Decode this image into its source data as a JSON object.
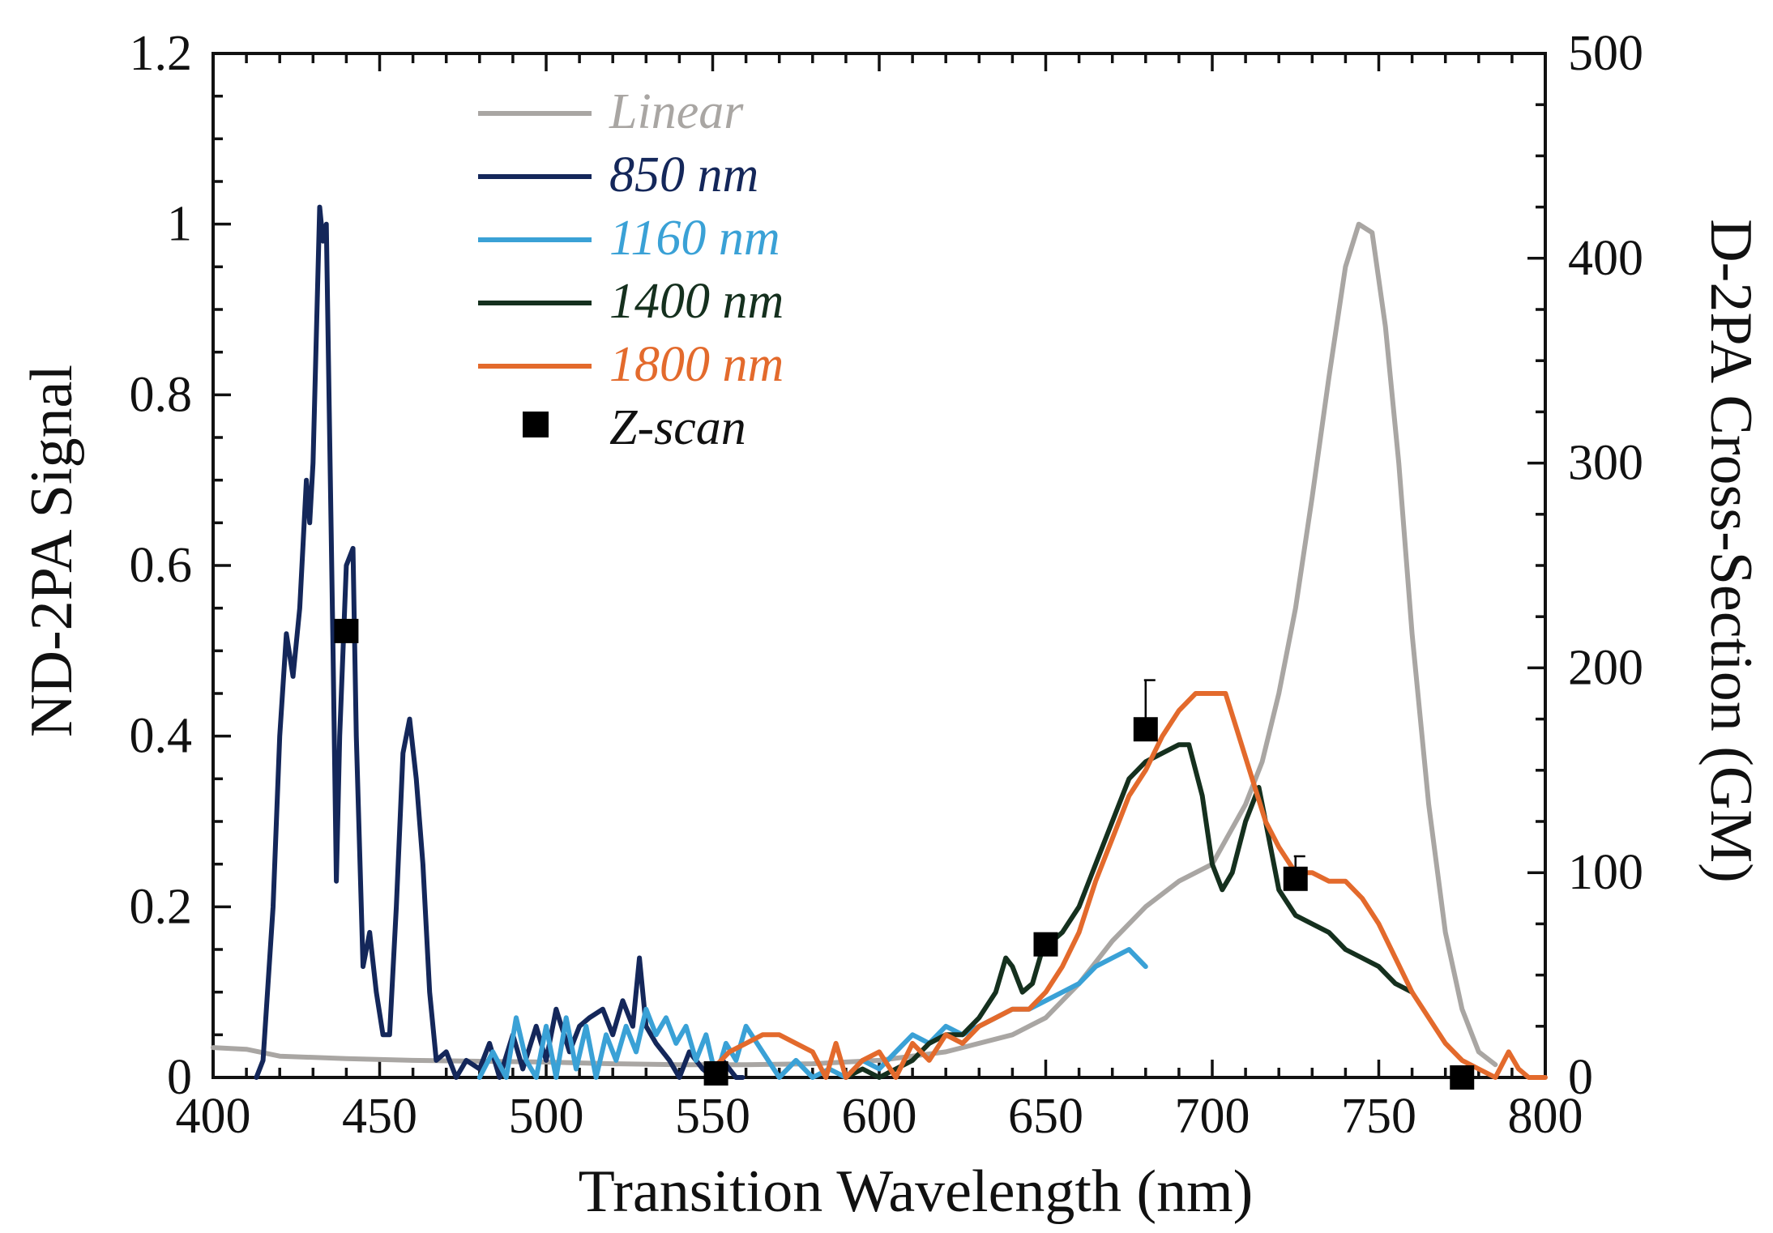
{
  "chart_data": {
    "type": "line",
    "xlabel": "Transition Wavelength (nm)",
    "ylabel_left": "ND-2PA Signal",
    "ylabel_right": "D-2PA Cross-Section (GM)",
    "xlim": [
      400,
      800
    ],
    "ylim_left": [
      0,
      1.2
    ],
    "ylim_right": [
      0,
      500
    ],
    "x_ticks": [
      400,
      450,
      500,
      550,
      600,
      650,
      700,
      750,
      800
    ],
    "x_tick_labels": [
      "400",
      "450",
      "500",
      "550",
      "600",
      "650",
      "700",
      "750",
      "800"
    ],
    "y_left_ticks": [
      0,
      0.2,
      0.4,
      0.6,
      0.8,
      1,
      1.2
    ],
    "y_left_tick_labels": [
      "0",
      "0.2",
      "0.4",
      "0.6",
      "0.8",
      "1",
      "1.2"
    ],
    "y_right_ticks": [
      0,
      100,
      200,
      300,
      400,
      500
    ],
    "y_right_tick_labels": [
      "0",
      "100",
      "200",
      "300",
      "400",
      "500"
    ],
    "legend_position": "top-left",
    "series": [
      {
        "name": "Linear",
        "color": "#a9a6a3",
        "axis": "left",
        "x": [
          400,
          410,
          420,
          440,
          460,
          480,
          500,
          520,
          540,
          560,
          580,
          600,
          620,
          640,
          650,
          660,
          670,
          680,
          690,
          700,
          710,
          715,
          720,
          725,
          730,
          735,
          740,
          744,
          748,
          752,
          756,
          760,
          765,
          770,
          775,
          780,
          785
        ],
        "y": [
          0.035,
          0.033,
          0.025,
          0.022,
          0.02,
          0.019,
          0.018,
          0.016,
          0.015,
          0.015,
          0.016,
          0.02,
          0.03,
          0.05,
          0.07,
          0.11,
          0.16,
          0.2,
          0.23,
          0.25,
          0.32,
          0.37,
          0.45,
          0.55,
          0.68,
          0.82,
          0.95,
          1.0,
          0.99,
          0.88,
          0.72,
          0.52,
          0.32,
          0.17,
          0.08,
          0.03,
          0.015
        ]
      },
      {
        "name": "850 nm",
        "color": "#14275a",
        "axis": "left",
        "x": [
          413,
          415,
          418,
          420,
          422,
          424,
          426,
          428,
          429,
          430,
          432,
          433,
          434,
          436,
          437,
          438,
          440,
          442,
          443,
          445,
          447,
          449,
          451,
          453,
          455,
          457,
          459,
          461,
          463,
          465,
          467,
          470,
          473,
          476,
          480,
          483,
          486,
          490,
          493,
          497,
          500,
          503,
          507,
          510,
          513,
          517,
          520,
          523,
          526,
          528,
          530,
          533,
          537,
          540,
          543,
          547,
          550,
          553,
          557,
          559
        ],
        "y": [
          0.0,
          0.02,
          0.2,
          0.4,
          0.52,
          0.47,
          0.55,
          0.7,
          0.65,
          0.72,
          1.02,
          0.98,
          1.0,
          0.5,
          0.23,
          0.4,
          0.6,
          0.62,
          0.4,
          0.13,
          0.17,
          0.1,
          0.05,
          0.05,
          0.2,
          0.38,
          0.42,
          0.35,
          0.25,
          0.1,
          0.02,
          0.03,
          0.0,
          0.02,
          0.01,
          0.04,
          0.0,
          0.05,
          0.01,
          0.06,
          0.02,
          0.08,
          0.03,
          0.06,
          0.07,
          0.08,
          0.05,
          0.09,
          0.06,
          0.14,
          0.06,
          0.04,
          0.02,
          0.0,
          0.03,
          0.01,
          0.0,
          0.02,
          0.0,
          0.0
        ]
      },
      {
        "name": "1160 nm",
        "color": "#3aa1d6",
        "axis": "left",
        "x": [
          480,
          484,
          488,
          491,
          494,
          497,
          500,
          503,
          506,
          509,
          512,
          515,
          518,
          521,
          524,
          527,
          530,
          533,
          536,
          539,
          542,
          545,
          548,
          551,
          554,
          557,
          560,
          565,
          570,
          575,
          580,
          585,
          590,
          595,
          600,
          605,
          610,
          615,
          620,
          625,
          630,
          635,
          640,
          645,
          650,
          655,
          660,
          665,
          670,
          675,
          680
        ],
        "y": [
          0.0,
          0.03,
          0.0,
          0.07,
          0.02,
          0.0,
          0.06,
          0.0,
          0.07,
          0.01,
          0.06,
          0.0,
          0.05,
          0.02,
          0.06,
          0.03,
          0.08,
          0.05,
          0.07,
          0.04,
          0.06,
          0.02,
          0.05,
          0.0,
          0.04,
          0.02,
          0.06,
          0.03,
          0.0,
          0.02,
          0.0,
          0.01,
          0.0,
          0.02,
          0.01,
          0.03,
          0.05,
          0.04,
          0.06,
          0.05,
          0.06,
          0.07,
          0.08,
          0.08,
          0.09,
          0.1,
          0.11,
          0.13,
          0.14,
          0.15,
          0.13
        ]
      },
      {
        "name": "1400 nm",
        "color": "#15301e",
        "axis": "left",
        "x": [
          590,
          595,
          600,
          605,
          610,
          615,
          620,
          625,
          630,
          635,
          638,
          640,
          643,
          646,
          649,
          652,
          655,
          660,
          665,
          670,
          675,
          680,
          685,
          690,
          693,
          697,
          700,
          703,
          706,
          710,
          714,
          716,
          720,
          725,
          730,
          735,
          740,
          745,
          750,
          755,
          760
        ],
        "y": [
          0.0,
          0.01,
          0.0,
          0.01,
          0.02,
          0.04,
          0.05,
          0.05,
          0.07,
          0.1,
          0.14,
          0.13,
          0.1,
          0.11,
          0.15,
          0.16,
          0.17,
          0.2,
          0.25,
          0.3,
          0.35,
          0.37,
          0.38,
          0.39,
          0.39,
          0.33,
          0.25,
          0.22,
          0.24,
          0.3,
          0.34,
          0.3,
          0.22,
          0.19,
          0.18,
          0.17,
          0.15,
          0.14,
          0.13,
          0.11,
          0.1
        ]
      },
      {
        "name": "1800 nm",
        "color": "#e36a2c",
        "axis": "left",
        "x": [
          550,
          555,
          560,
          565,
          570,
          575,
          580,
          584,
          587,
          590,
          595,
          600,
          605,
          610,
          615,
          620,
          625,
          630,
          635,
          640,
          645,
          650,
          655,
          660,
          665,
          670,
          675,
          680,
          685,
          690,
          695,
          700,
          704,
          708,
          712,
          716,
          720,
          725,
          730,
          735,
          740,
          745,
          750,
          755,
          760,
          765,
          770,
          775,
          780,
          785,
          789,
          792,
          795,
          800
        ],
        "y": [
          0.01,
          0.03,
          0.04,
          0.05,
          0.05,
          0.04,
          0.03,
          0.0,
          0.04,
          0.0,
          0.02,
          0.03,
          0.0,
          0.04,
          0.02,
          0.05,
          0.04,
          0.06,
          0.07,
          0.08,
          0.08,
          0.1,
          0.13,
          0.17,
          0.23,
          0.28,
          0.33,
          0.36,
          0.4,
          0.43,
          0.45,
          0.45,
          0.45,
          0.4,
          0.35,
          0.3,
          0.27,
          0.24,
          0.24,
          0.23,
          0.23,
          0.21,
          0.18,
          0.14,
          0.1,
          0.07,
          0.04,
          0.02,
          0.01,
          0.0,
          0.03,
          0.01,
          0.0,
          0.0
        ]
      }
    ],
    "markers": {
      "name": "Z-scan",
      "color": "#000000",
      "axis": "right",
      "x": [
        440,
        551,
        650,
        680,
        725,
        775
      ],
      "y": [
        218,
        2,
        65,
        170,
        97,
        0
      ],
      "y_err_upper": [
        0,
        0,
        5,
        24,
        11,
        0
      ]
    }
  }
}
